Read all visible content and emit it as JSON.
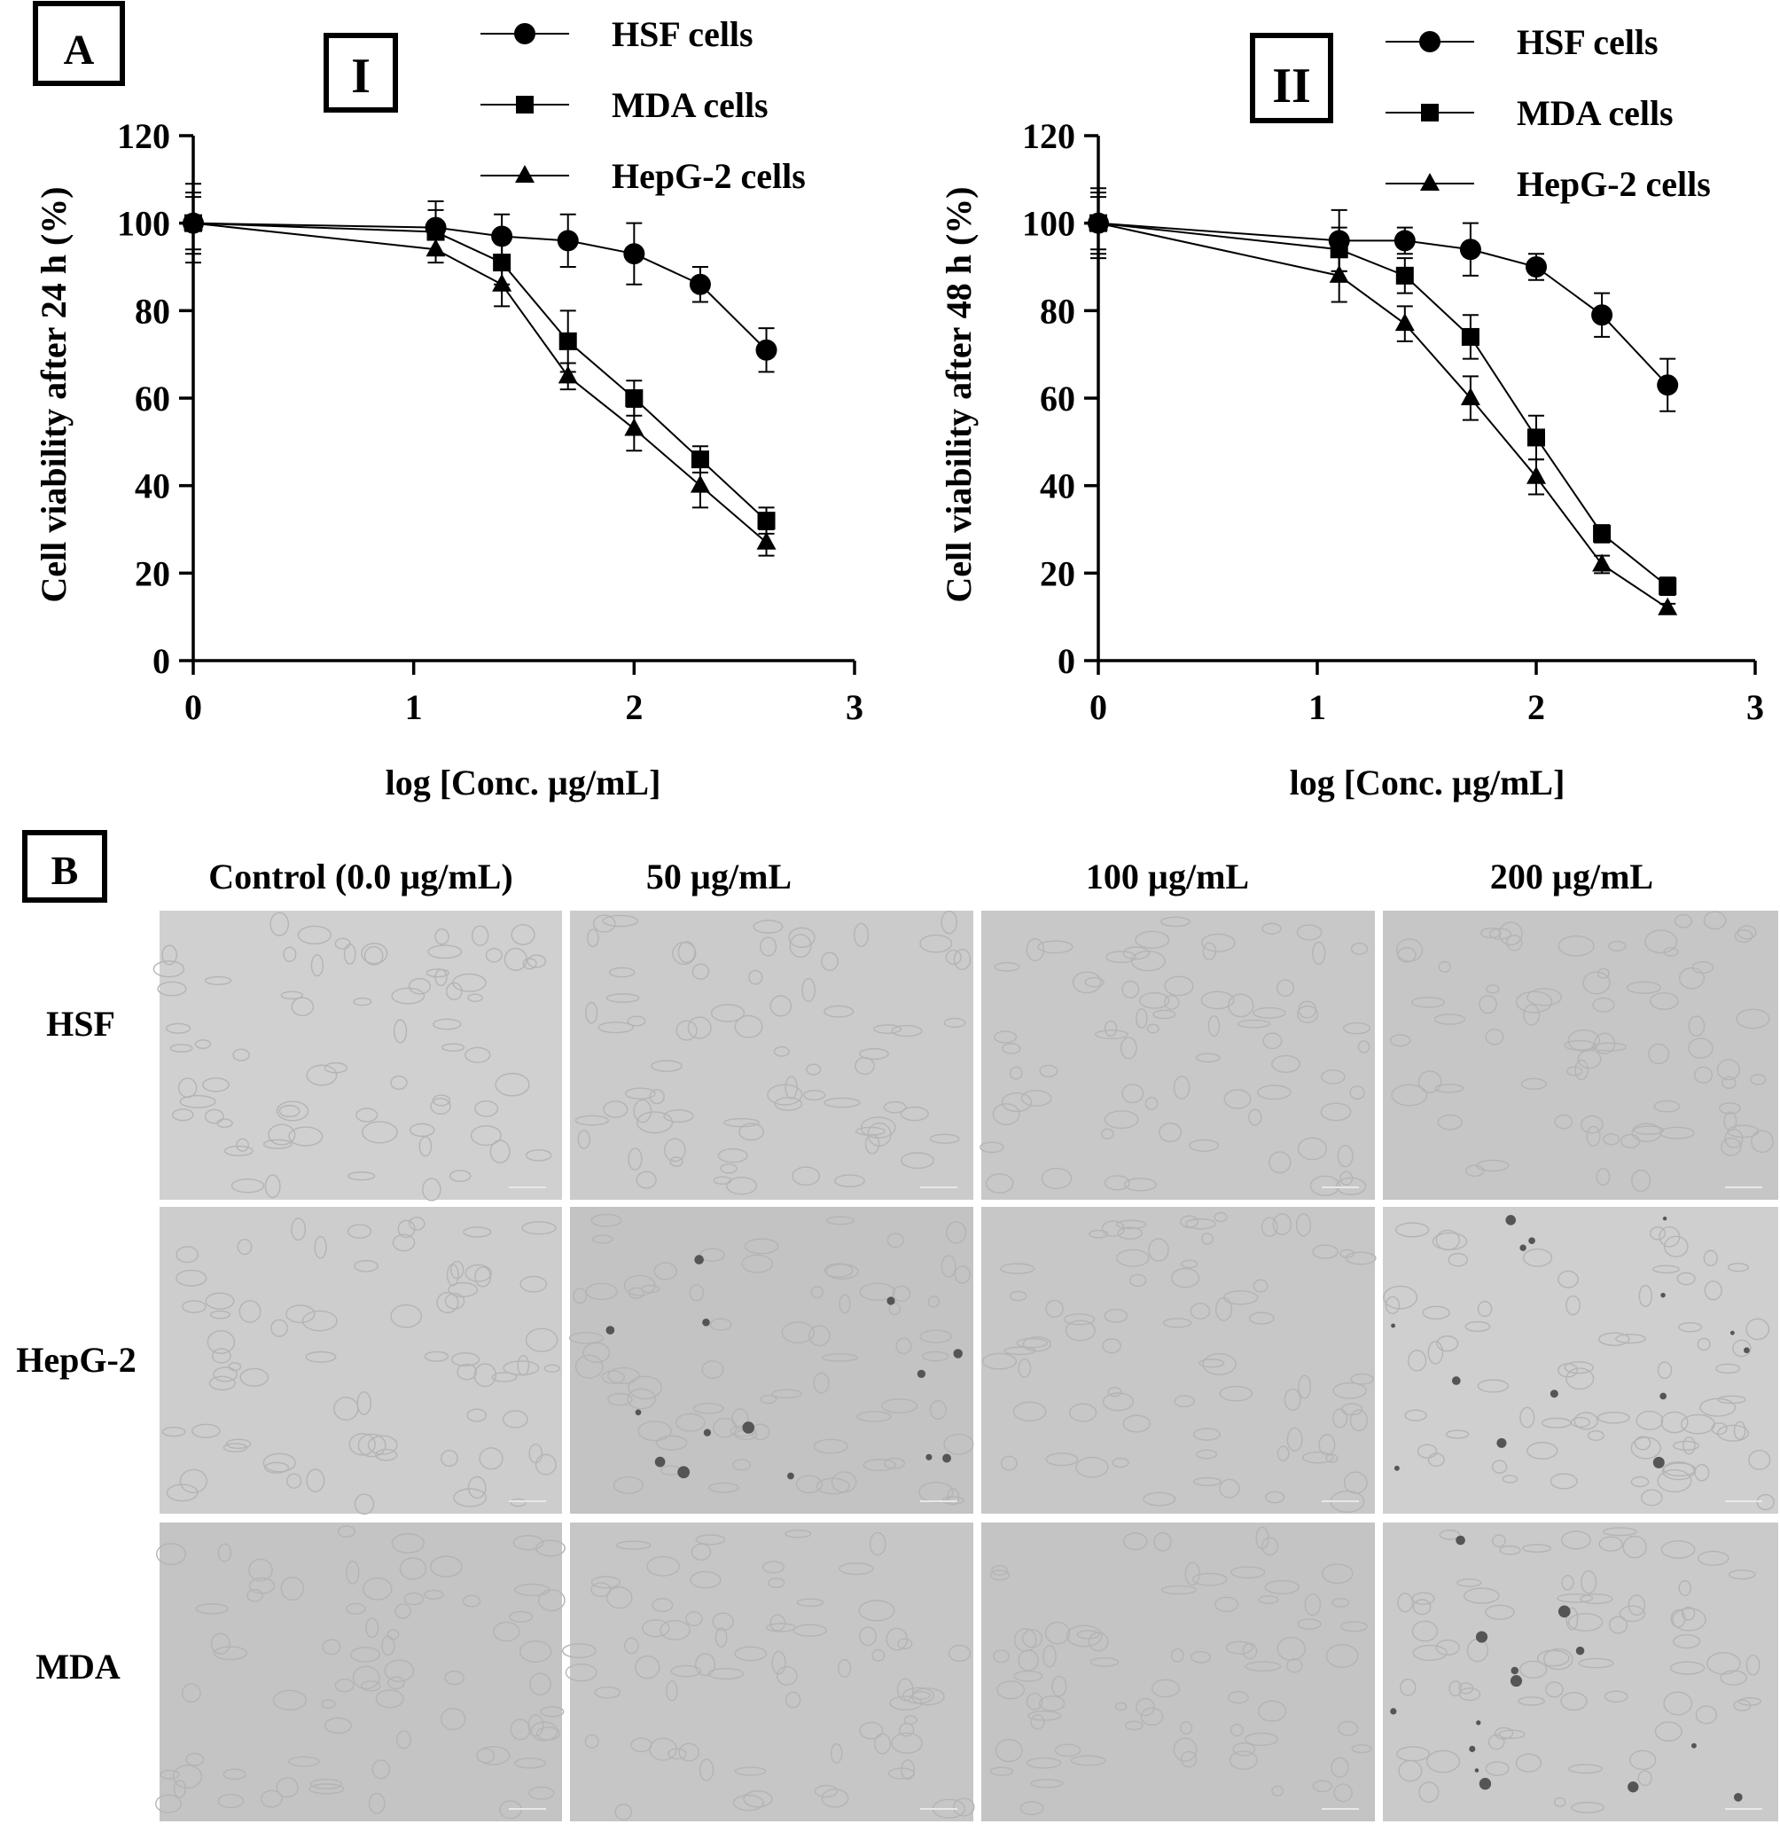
{
  "panel_a": {
    "label": "A",
    "charts": [
      {
        "roman": "I",
        "ylabel": "Cell viability after 24 h (%)",
        "xlabel": "log [Conc. µg/mL]"
      },
      {
        "roman": "II",
        "ylabel": "Cell viability after 48 h (%)",
        "xlabel": "log [Conc. µg/mL]"
      }
    ]
  },
  "panel_b": {
    "label": "B",
    "columns": [
      "Control (0.0 µg/mL)",
      "50 µg/mL",
      "100 µg/mL",
      "200 µg/mL"
    ],
    "rows": [
      "HSF",
      "HepG-2",
      "MDA"
    ],
    "image_tones": [
      [
        "#d0d0d0",
        "#cbcbcb",
        "#c8c8c8",
        "#c6c6c6"
      ],
      [
        "#cdcdcd",
        "#c3c3c3",
        "#c7c7c7",
        "#cfcfcf"
      ],
      [
        "#c4c4c4",
        "#c6c6c6",
        "#c4c4c4",
        "#cacaca"
      ]
    ]
  },
  "chart_data": [
    {
      "type": "line",
      "x": [
        0,
        1.1,
        1.4,
        1.7,
        2.0,
        2.3,
        2.6
      ],
      "xlim": [
        0,
        3
      ],
      "ylim": [
        0,
        120
      ],
      "xticks": [
        0,
        1,
        2,
        3
      ],
      "yticks": [
        0,
        20,
        40,
        60,
        80,
        100,
        120
      ],
      "legend_position": "top-right",
      "series": [
        {
          "name": "HSF cells",
          "marker": "circle",
          "values": [
            100,
            99,
            97,
            96,
            93,
            86,
            71
          ],
          "errors": [
            9,
            6,
            5,
            6,
            7,
            4,
            5
          ]
        },
        {
          "name": "MDA cells",
          "marker": "square",
          "values": [
            100,
            98,
            91,
            73,
            60,
            46,
            32
          ],
          "errors": [
            7,
            5,
            5,
            7,
            4,
            3,
            3
          ]
        },
        {
          "name": "HepG-2 cells",
          "marker": "triangle",
          "values": [
            100,
            94,
            86,
            65,
            53,
            40,
            27
          ],
          "errors": [
            6,
            3,
            5,
            3,
            5,
            5,
            3
          ]
        }
      ]
    },
    {
      "type": "line",
      "x": [
        0,
        1.1,
        1.4,
        1.7,
        2.0,
        2.3,
        2.6
      ],
      "xlim": [
        0,
        3
      ],
      "ylim": [
        0,
        120
      ],
      "xticks": [
        0,
        1,
        2,
        3
      ],
      "yticks": [
        0,
        20,
        40,
        60,
        80,
        100,
        120
      ],
      "legend_position": "top-right",
      "series": [
        {
          "name": "HSF cells",
          "marker": "circle",
          "values": [
            100,
            96,
            96,
            94,
            90,
            79,
            63
          ],
          "errors": [
            7,
            7,
            3,
            6,
            3,
            5,
            6
          ]
        },
        {
          "name": "MDA cells",
          "marker": "square",
          "values": [
            100,
            94,
            88,
            74,
            51,
            29,
            17
          ],
          "errors": [
            8,
            5,
            4,
            5,
            5,
            2,
            2
          ]
        },
        {
          "name": "HepG-2 cells",
          "marker": "triangle",
          "values": [
            100,
            88,
            77,
            60,
            42,
            22,
            12
          ],
          "errors": [
            6,
            6,
            4,
            5,
            4,
            2,
            1
          ]
        }
      ]
    }
  ]
}
